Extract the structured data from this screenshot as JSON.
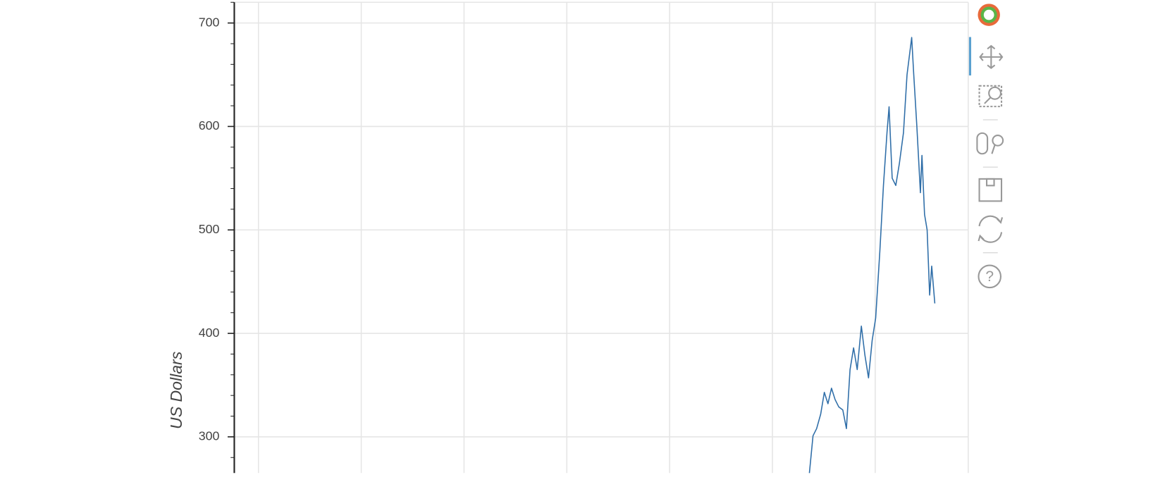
{
  "chart_data": {
    "type": "line",
    "y_label": "US Dollars",
    "x": [
      2010.72,
      2010.79,
      2010.86,
      2010.94,
      2011.01,
      2011.08,
      2011.15,
      2011.22,
      2011.29,
      2011.37,
      2011.44,
      2011.51,
      2011.58,
      2011.65,
      2011.73,
      2011.8,
      2011.87,
      2011.94,
      2012.01,
      2012.09,
      2012.16,
      2012.23,
      2012.27,
      2012.33,
      2012.4,
      2012.47,
      2012.55,
      2012.62,
      2012.71,
      2012.75,
      2012.81,
      2012.88,
      2012.91,
      2012.96,
      2013.01,
      2013.06,
      2013.1,
      2013.16
    ],
    "values": [
      265,
      301,
      308,
      322,
      343,
      332,
      347,
      336,
      329,
      326,
      308,
      365,
      386,
      365,
      407,
      379,
      357,
      393,
      415,
      479,
      543,
      594,
      619,
      550,
      543,
      564,
      594,
      650,
      686,
      650,
      600,
      536,
      572,
      515,
      500,
      437,
      465,
      429
    ],
    "color": "#2f6ea8",
    "xlim": [
      1999.53,
      2013.81
    ],
    "xticks": [
      2000,
      2002,
      2004,
      2006,
      2008,
      2010,
      2012
    ],
    "ylim": [
      265,
      720
    ],
    "yticks": [
      300,
      400,
      500,
      600,
      700
    ],
    "grid": true
  }
}
